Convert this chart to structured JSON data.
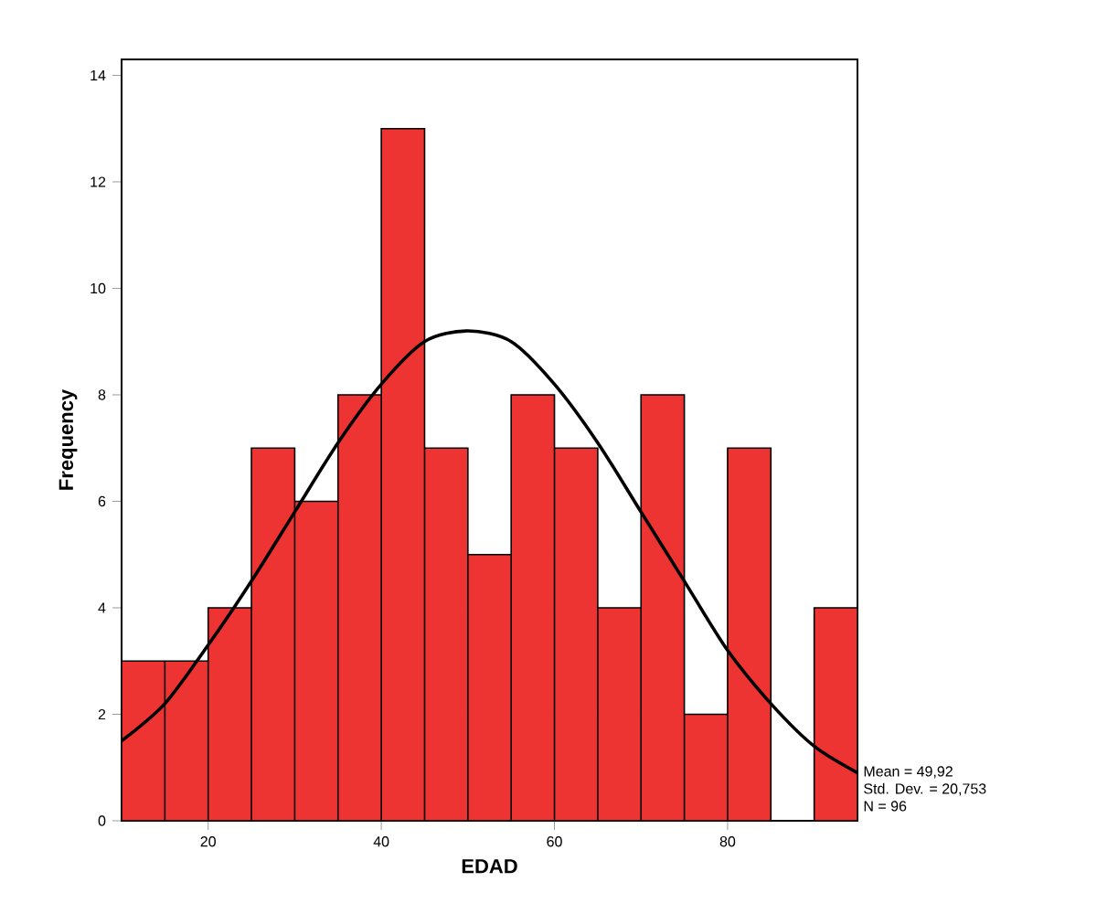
{
  "chart_data": {
    "type": "histogram",
    "xlabel": "EDAD",
    "ylabel": "Frequency",
    "bins": [
      10,
      15,
      20,
      25,
      30,
      35,
      40,
      45,
      50,
      55,
      60,
      65,
      70,
      75,
      80,
      85,
      90,
      95
    ],
    "values": [
      3,
      3,
      4,
      7,
      6,
      8,
      13,
      7,
      5,
      8,
      7,
      4,
      8,
      2,
      7,
      0,
      4
    ],
    "color": "#ee3333",
    "series": [
      {
        "type": "line",
        "color": "#000000",
        "x": [
          10,
          15,
          20,
          25,
          30,
          35,
          40,
          45,
          50,
          55,
          60,
          65,
          70,
          75,
          80,
          85,
          90,
          95
        ],
        "values": [
          1.5,
          2.2,
          3.3,
          4.5,
          5.8,
          7.1,
          8.2,
          9.0,
          9.2,
          9.0,
          8.2,
          7.1,
          5.8,
          4.5,
          3.2,
          2.2,
          1.4,
          0.9
        ]
      }
    ],
    "xlim": [
      10,
      95
    ],
    "ylim": [
      0,
      14.3
    ],
    "xticks": [
      20,
      40,
      60,
      80
    ],
    "yticks": [
      0,
      2,
      4,
      6,
      8,
      10,
      12,
      14
    ],
    "grid": false,
    "annotations": [
      "Mean = 49,92",
      "Std. Dev. = 20,753",
      "N = 96"
    ]
  }
}
